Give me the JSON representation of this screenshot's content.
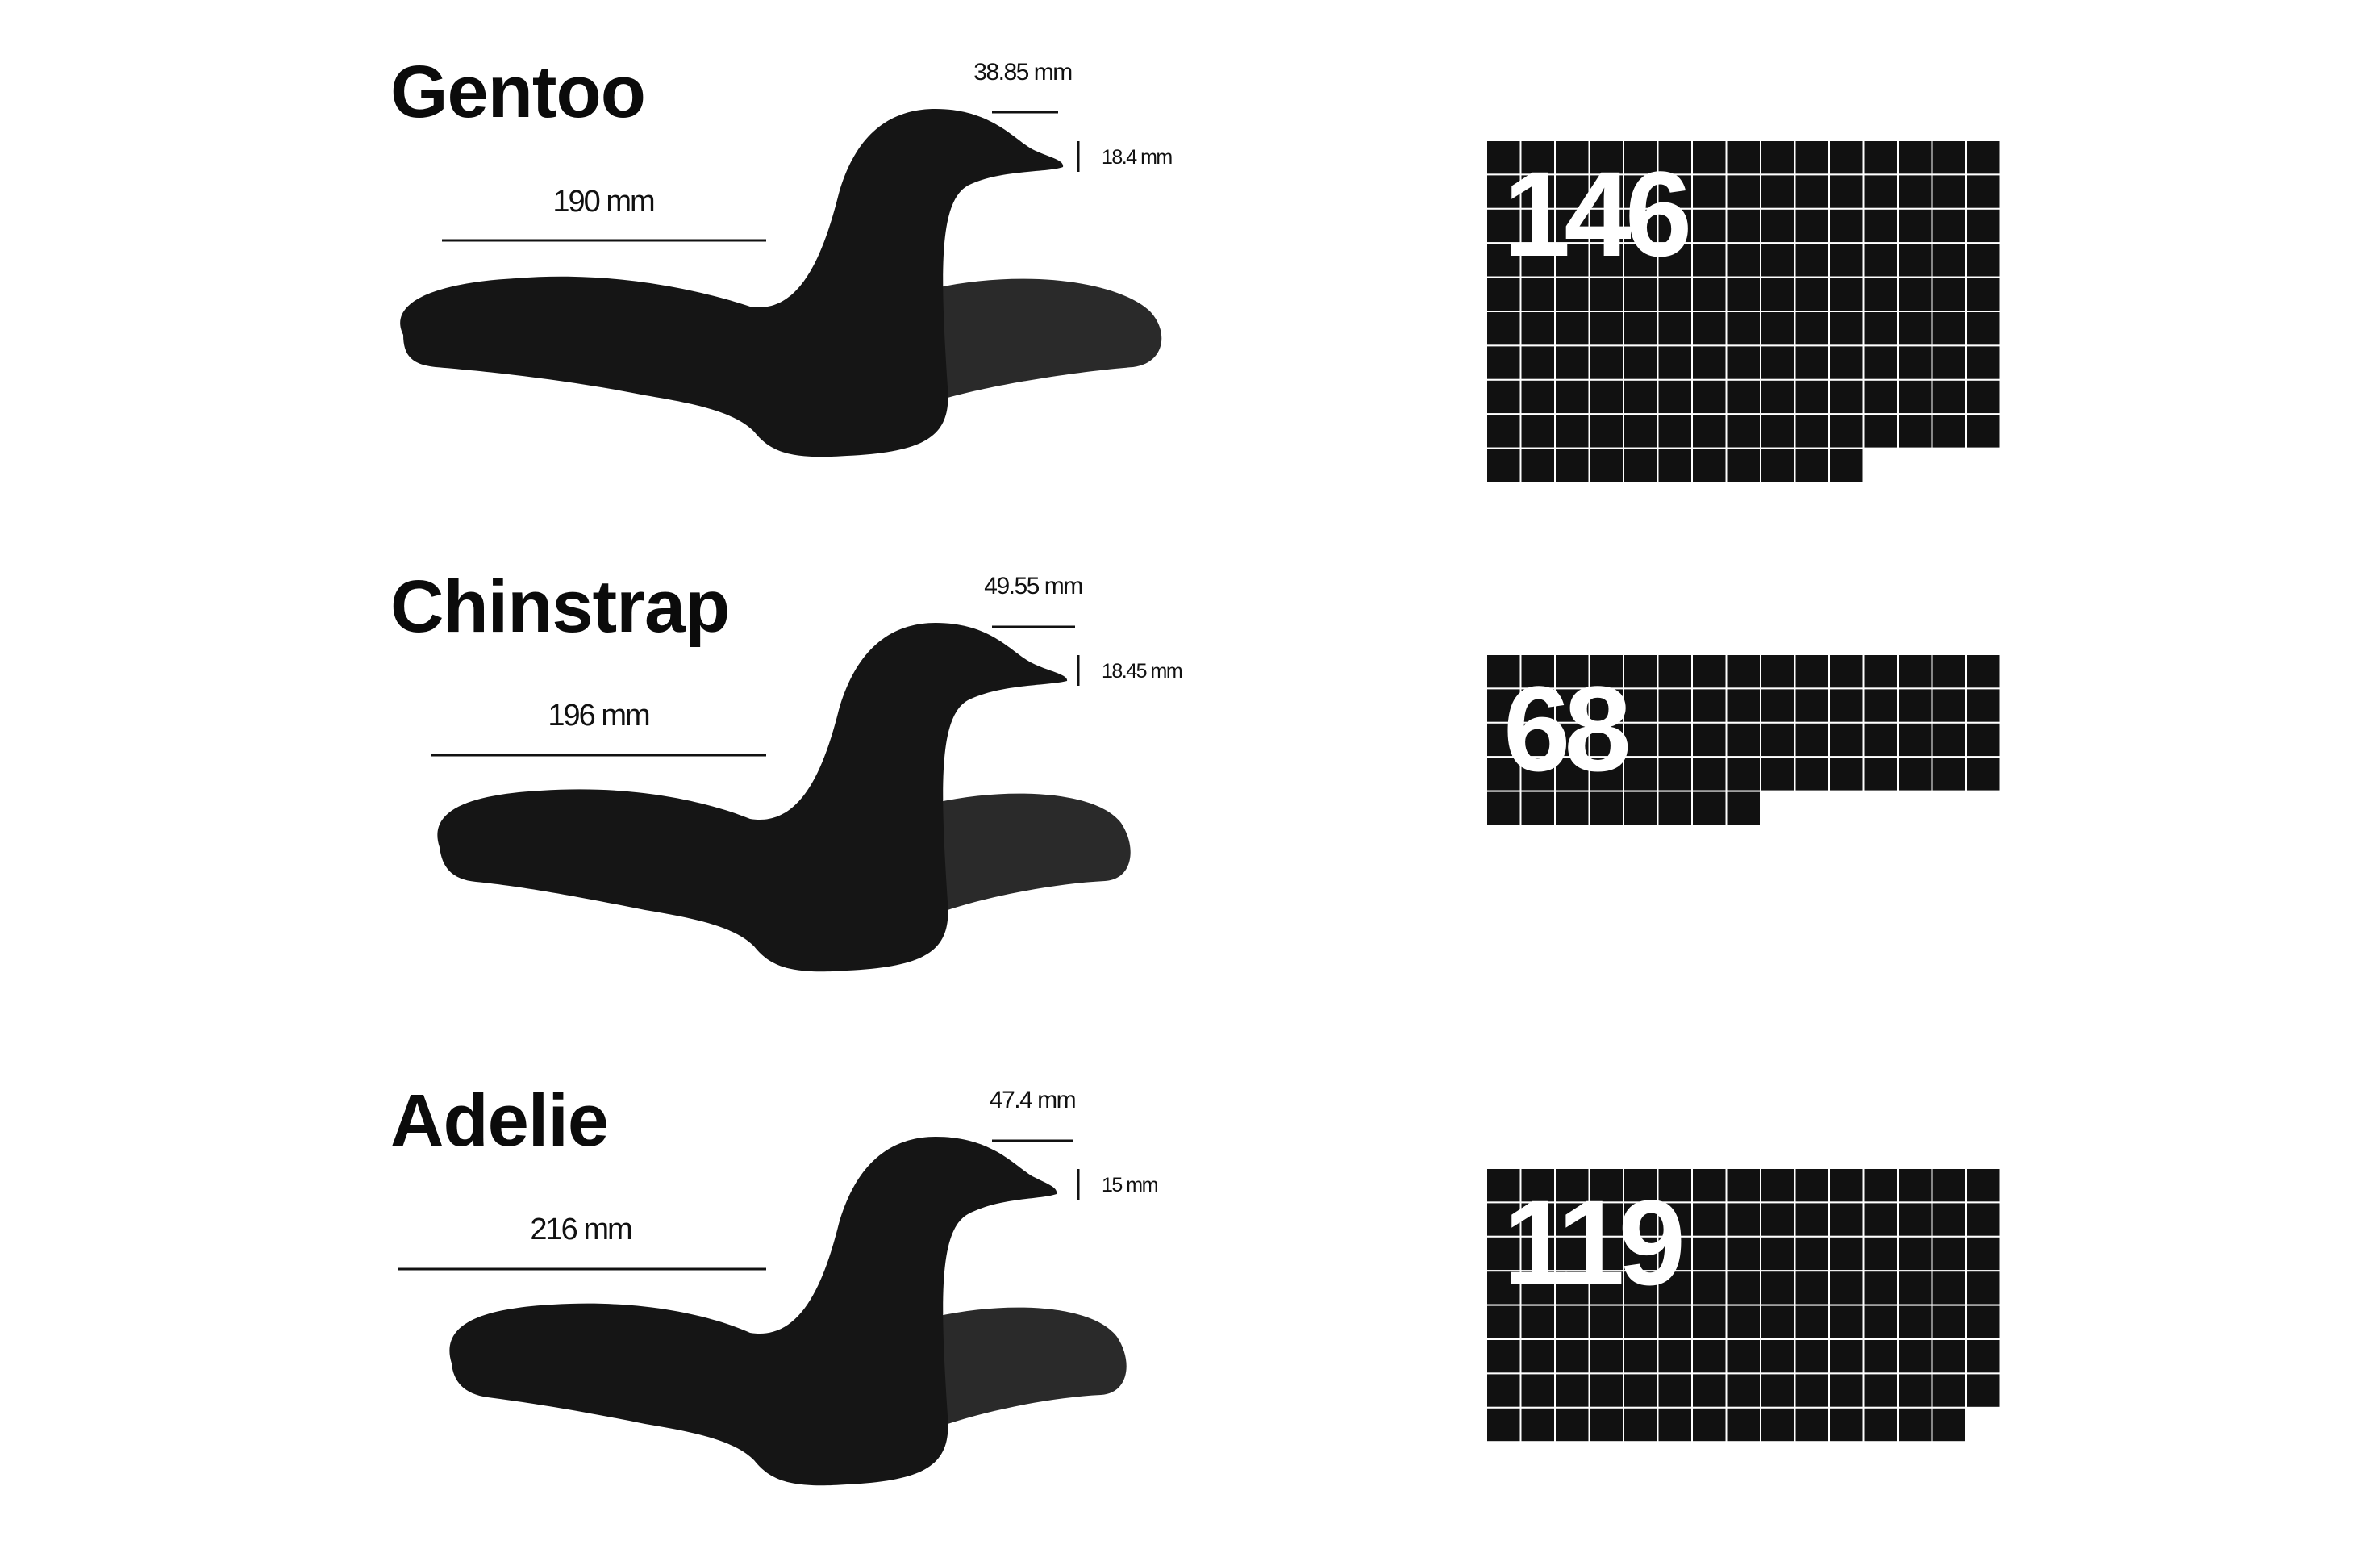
{
  "chart_data": {
    "type": "waffle",
    "title": "",
    "units_per_cell": 1,
    "grid_columns": 15,
    "species": [
      {
        "name": "Gentoo",
        "count": 146,
        "count_label": "146",
        "flipper_length_label": "190 mm",
        "bill_length_label": "38.85 mm",
        "bill_depth_label": "18.4 mm"
      },
      {
        "name": "Chinstrap",
        "count": 68,
        "count_label": "68",
        "flipper_length_label": "196 mm",
        "bill_length_label": "49.55 mm",
        "bill_depth_label": "18.45 mm"
      },
      {
        "name": "Adelie",
        "count": 119,
        "count_label": "119",
        "flipper_length_label": "216 mm",
        "bill_length_label": "47.4 mm",
        "bill_depth_label": "15 mm"
      }
    ],
    "colors": {
      "body": "#151515",
      "wing": "#2a2a2a",
      "cell": "#111111",
      "grid_line": "#ffffff",
      "text": "#0b0b0b"
    }
  }
}
